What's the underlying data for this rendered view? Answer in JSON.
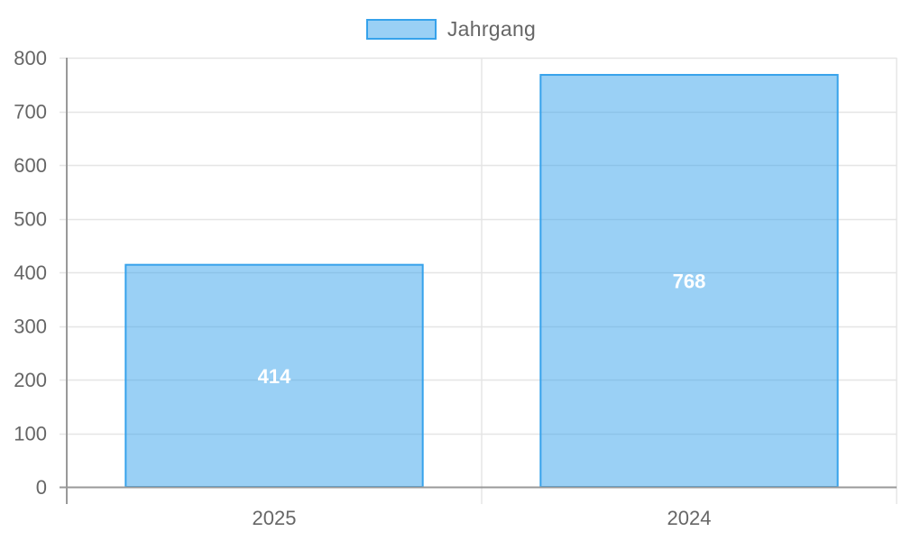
{
  "legend": {
    "label": "Jahrgang"
  },
  "colors": {
    "bar_fill": "rgba(54,162,235,0.5)",
    "bar_stroke": "#36a2eb",
    "grid": "#e5e5e5",
    "axis": "#999999",
    "tick_text": "#666666",
    "data_label": "#ffffff"
  },
  "chart_data": {
    "type": "bar",
    "title": "",
    "xlabel": "",
    "ylabel": "",
    "categories": [
      "2025",
      "2024"
    ],
    "series": [
      {
        "name": "Jahrgang",
        "values": [
          414,
          768
        ]
      }
    ],
    "ylim": [
      0,
      800
    ],
    "yticks": [
      0,
      100,
      200,
      300,
      400,
      500,
      600,
      700,
      800
    ],
    "grid": true,
    "legend_position": "top-center",
    "data_labels": true
  }
}
